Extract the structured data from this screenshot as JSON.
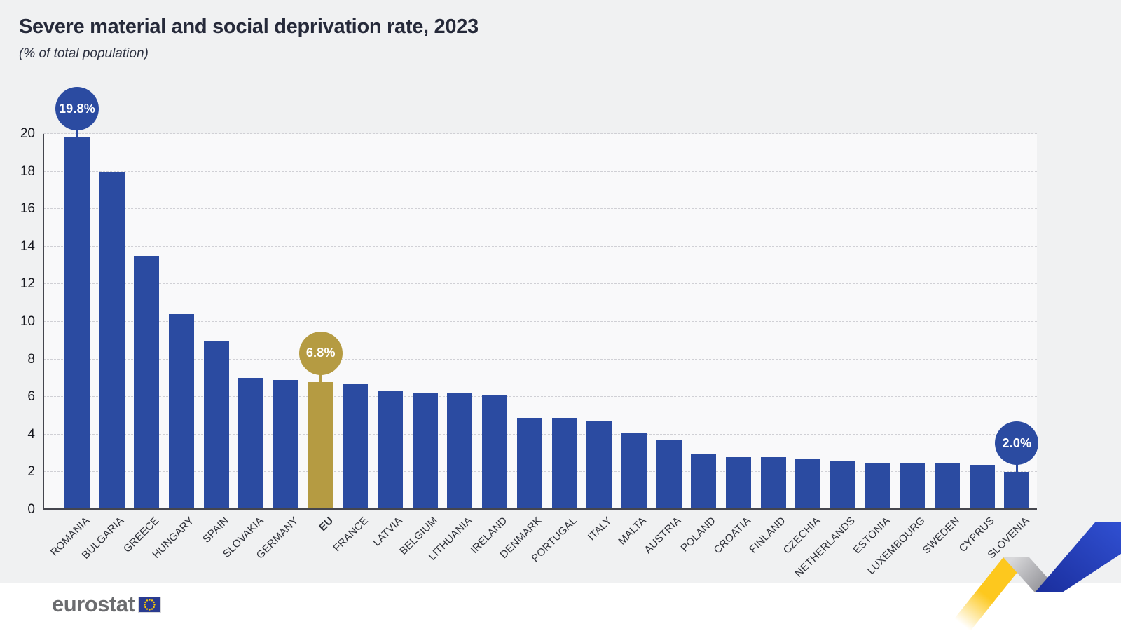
{
  "header": {
    "title": "Severe material and social deprivation rate, 2023",
    "subtitle": "(% of total population)"
  },
  "footer": {
    "brand": "eurostat"
  },
  "colors": {
    "bar_blue": "#2b4ba1",
    "bar_gold": "#b59b42",
    "background": "#f0f1f2",
    "plot_background": "#f9f9fa",
    "gridline": "#d0d0d5",
    "axis": "#45464e",
    "title_text": "#262a3a",
    "tick_text": "#16171e",
    "logo_gray": "#6b6c6f",
    "flag_blue": "#2a3b8f",
    "star_yellow": "#ffcc00",
    "ribbon_yellow": "#fdc81e",
    "ribbon_blue": "#2545b8",
    "ribbon_gray": "#9b9ba0"
  },
  "chart_data": {
    "type": "bar",
    "title": "Severe material and social deprivation rate, 2023",
    "subtitle": "(% of total population)",
    "xlabel": "",
    "ylabel": "% of total population",
    "ylim": [
      0,
      20
    ],
    "ytick_step": 2,
    "grid": "horizontal-dashed",
    "legend": "none",
    "categories": [
      "ROMANIA",
      "BULGARIA",
      "GREECE",
      "HUNGARY",
      "SPAIN",
      "SLOVAKIA",
      "GERMANY",
      "EU",
      "FRANCE",
      "LATVIA",
      "BELGIUM",
      "LITHUANIA",
      "IRELAND",
      "DENMARK",
      "PORTUGAL",
      "ITALY",
      "MALTA",
      "AUSTRIA",
      "POLAND",
      "CROATIA",
      "FINLAND",
      "CZECHIA",
      "NETHERLANDS",
      "ESTONIA",
      "LUXEMBOURG",
      "SWEDEN",
      "CYPRUS",
      "SLOVENIA"
    ],
    "values": [
      19.8,
      18.0,
      13.5,
      10.4,
      9.0,
      7.0,
      6.9,
      6.8,
      6.7,
      6.3,
      6.2,
      6.2,
      6.1,
      4.9,
      4.9,
      4.7,
      4.1,
      3.7,
      3.0,
      2.8,
      2.8,
      2.7,
      2.6,
      2.5,
      2.5,
      2.5,
      2.4,
      2.0
    ],
    "highlight_category": "EU",
    "callouts": [
      {
        "category": "ROMANIA",
        "label": "19.8%",
        "color": "blue"
      },
      {
        "category": "EU",
        "label": "6.8%",
        "color": "gold"
      },
      {
        "category": "SLOVENIA",
        "label": "2.0%",
        "color": "blue"
      }
    ]
  }
}
